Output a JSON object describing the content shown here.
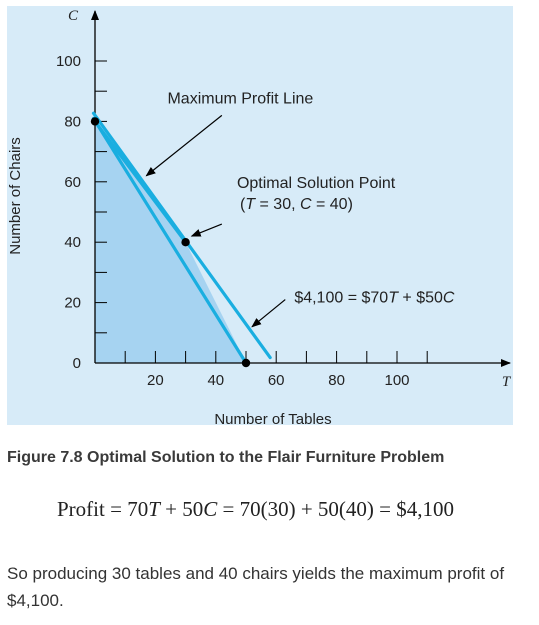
{
  "colors": {
    "panel_bg": "#d7ebf8",
    "feasible_fill": "#a6d3f1",
    "line_color": "#1aaee0",
    "point_color": "#000000",
    "axis_color": "#000000"
  },
  "chart_data": {
    "type": "line",
    "x_axis_name": "T",
    "y_axis_name": "C",
    "xlabel": "Number of Tables",
    "ylabel": "Number of Chairs",
    "x_ticks": [
      20,
      40,
      60,
      80,
      100
    ],
    "y_ticks": [
      0,
      20,
      40,
      60,
      80,
      100
    ],
    "x_minor_ticks": [
      10,
      20,
      30,
      40,
      50,
      60,
      70,
      80,
      90,
      100,
      110
    ],
    "y_minor_ticks": [
      10,
      20,
      30,
      40,
      50,
      60,
      70,
      80,
      90,
      100
    ],
    "xlim": [
      0,
      140
    ],
    "ylim": [
      0,
      110
    ],
    "feasible_region": [
      [
        0,
        0
      ],
      [
        0,
        80
      ],
      [
        30,
        40
      ],
      [
        50,
        0
      ]
    ],
    "series": [
      {
        "kind": "constraint",
        "points": [
          [
            -0.5,
            81
          ],
          [
            50,
            0
          ]
        ]
      },
      {
        "kind": "constraint",
        "points": [
          [
            0,
            80
          ],
          [
            30,
            40
          ]
        ]
      },
      {
        "kind": "isoprofit",
        "points": [
          [
            -0.5,
            82.7
          ],
          [
            58,
            1.8
          ]
        ]
      }
    ],
    "marked_points": [
      [
        0,
        80
      ],
      [
        30,
        40
      ],
      [
        50,
        0
      ]
    ],
    "annotations": [
      {
        "text": "Maximum Profit Line",
        "text_at": [
          24,
          86
        ],
        "arrow_from": [
          42,
          82
        ],
        "arrow_to": [
          17,
          62
        ]
      },
      {
        "text": "Optimal Solution Point",
        "text_at": [
          47,
          58
        ],
        "arrow_from": [
          42,
          46
        ],
        "arrow_to": [
          32,
          42
        ]
      },
      {
        "text": "(T = 30, C = 40)",
        "text_at": [
          48,
          51
        ],
        "arrow_from": null,
        "arrow_to": null
      },
      {
        "text": "$4,100 = $70T + $50C",
        "text_at": [
          66,
          20
        ],
        "arrow_from": [
          63,
          21
        ],
        "arrow_to": [
          52,
          12
        ]
      }
    ]
  },
  "caption": "Figure 7.8 Optimal Solution to the Flair Furniture Problem",
  "equation": {
    "lhs": "Profit",
    "rhs1_a": "70",
    "rhs1_b": "T",
    "rhs1_c": " + 50",
    "rhs1_d": "C",
    "rhs2": "70(30) + 50(40)",
    "result": "$4,100"
  },
  "body_text": "So producing 30 tables and 40 chairs yields the maximum profit of $4,100."
}
